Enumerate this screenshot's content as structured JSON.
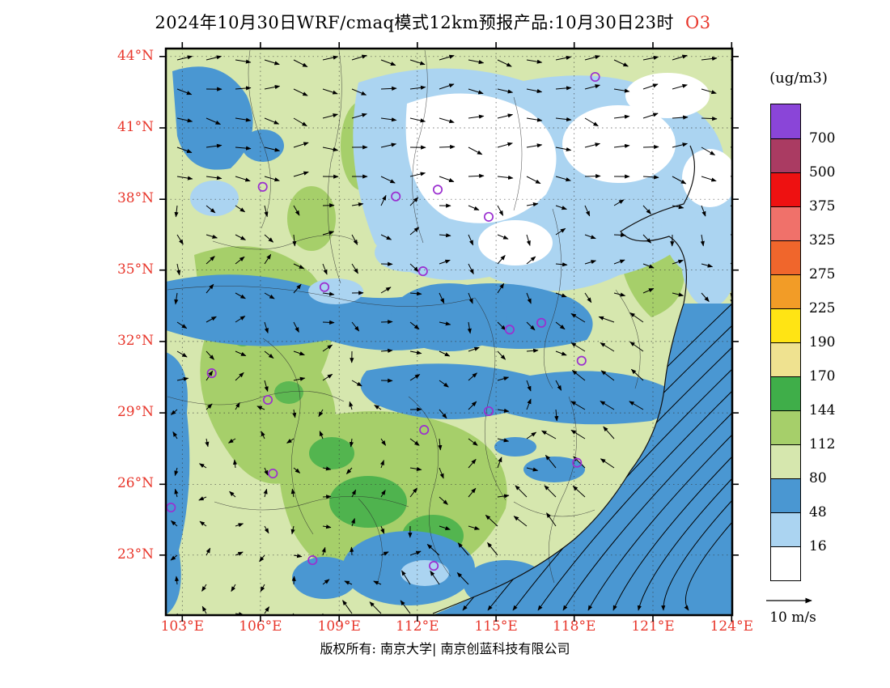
{
  "title": {
    "text": "2024年10月30日WRF/cmaq模式12km预报产品:10月30日23时",
    "species": "O3"
  },
  "axes": {
    "lat_ticks": [
      "44°N",
      "41°N",
      "38°N",
      "35°N",
      "32°N",
      "29°N",
      "26°N",
      "23°N"
    ],
    "lon_ticks": [
      "103°E",
      "106°E",
      "109°E",
      "112°E",
      "115°E",
      "118°E",
      "121°E",
      "124°E"
    ]
  },
  "colorbar": {
    "unit": "(ug/m3)",
    "boundary_labels": [
      "700",
      "500",
      "375",
      "325",
      "275",
      "225",
      "190",
      "170",
      "144",
      "112",
      "80",
      "48",
      "16"
    ],
    "segment_colors_top_to_bottom": [
      "#8a45d8",
      "#aa3b62",
      "#ee1111",
      "#f0716a",
      "#f0662c",
      "#f29c27",
      "#ffe414",
      "#efe290",
      "#3fae49",
      "#a6cf6a",
      "#d6e7ae",
      "#4a97d2",
      "#abd4f1",
      "#ffffff"
    ]
  },
  "wind_reference": {
    "label": "10 m/s"
  },
  "footer": {
    "copyright": "版权所有: 南京大学| 南京创蓝科技有限公司"
  },
  "colors": {
    "tick_label": "#e8372c",
    "species_label": "#e8372c",
    "city_marker": "#9b2fd0",
    "field_low_blue": "#4a97d2",
    "field_light_blue": "#abd4f1",
    "field_pale_green": "#d6e7ae",
    "field_yellow_green": "#a6cf6a",
    "field_green": "#3fae49"
  },
  "map": {
    "city_markers": [
      {
        "x": 0.758,
        "y": 0.05
      },
      {
        "x": 0.171,
        "y": 0.244
      },
      {
        "x": 0.406,
        "y": 0.261
      },
      {
        "x": 0.48,
        "y": 0.249
      },
      {
        "x": 0.57,
        "y": 0.297
      },
      {
        "x": 0.454,
        "y": 0.393
      },
      {
        "x": 0.28,
        "y": 0.421
      },
      {
        "x": 0.607,
        "y": 0.496
      },
      {
        "x": 0.663,
        "y": 0.484
      },
      {
        "x": 0.734,
        "y": 0.551
      },
      {
        "x": 0.081,
        "y": 0.573
      },
      {
        "x": 0.18,
        "y": 0.62
      },
      {
        "x": 0.456,
        "y": 0.673
      },
      {
        "x": 0.57,
        "y": 0.64
      },
      {
        "x": 0.726,
        "y": 0.731
      },
      {
        "x": 0.189,
        "y": 0.75
      },
      {
        "x": 0.009,
        "y": 0.81
      },
      {
        "x": 0.259,
        "y": 0.903
      },
      {
        "x": 0.473,
        "y": 0.913
      }
    ]
  }
}
